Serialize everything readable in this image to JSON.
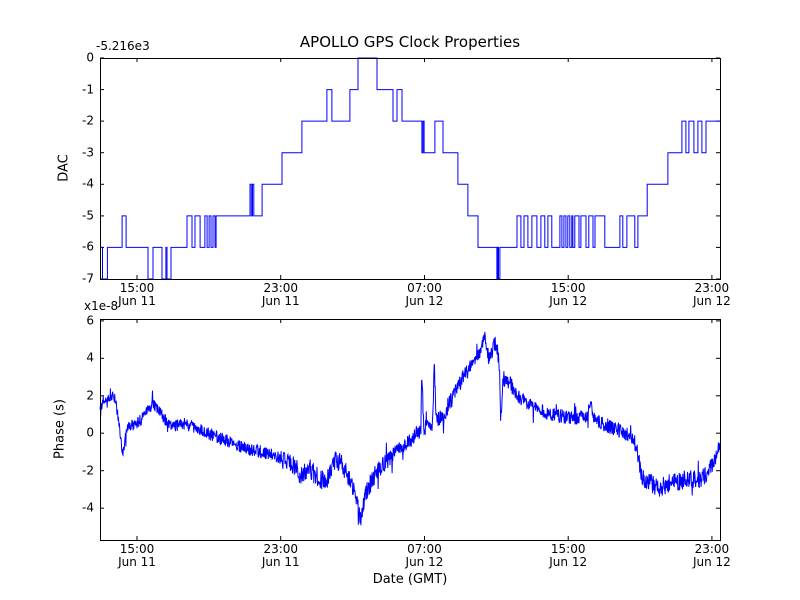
{
  "figure": {
    "title": "APOLLO GPS Clock Properties",
    "background_color": "#ffffff",
    "line_color": "#0000ff",
    "axis_color": "#000000"
  },
  "chart_data": [
    {
      "type": "line",
      "subplot": "top",
      "title": "APOLLO GPS Clock Properties",
      "series_name": "DAC",
      "ylabel": "DAC",
      "y_offset_label": "-5.216e3",
      "yticks": [
        0,
        -1,
        -2,
        -3,
        -4,
        -5,
        -6,
        -7
      ],
      "ylim": [
        -7,
        0
      ],
      "xlim_hours": [
        12.94,
        47.45
      ],
      "xticks_hours": [
        15,
        23,
        31,
        39,
        47
      ],
      "xtick_labels": [
        [
          "15:00",
          "Jun 11"
        ],
        [
          "23:00",
          "Jun 11"
        ],
        [
          "07:00",
          "Jun 12"
        ],
        [
          "15:00",
          "Jun 12"
        ],
        [
          "23:00",
          "Jun 12"
        ]
      ],
      "grid": false,
      "draw_style": "steps-post",
      "steps": [
        [
          12.94,
          -6
        ],
        [
          13.08,
          -7
        ],
        [
          13.35,
          -6
        ],
        [
          14.17,
          -5
        ],
        [
          14.39,
          -6
        ],
        [
          15.61,
          -7
        ],
        [
          15.89,
          -6
        ],
        [
          16.39,
          -7
        ],
        [
          16.61,
          -6
        ],
        [
          16.67,
          -7
        ],
        [
          16.89,
          -6
        ],
        [
          17.78,
          -5
        ],
        [
          18.06,
          -6
        ],
        [
          18.23,
          -5
        ],
        [
          18.51,
          -6
        ],
        [
          18.78,
          -5
        ],
        [
          18.9,
          -6
        ],
        [
          19.01,
          -5
        ],
        [
          19.12,
          -6
        ],
        [
          19.23,
          -5
        ],
        [
          19.34,
          -6
        ],
        [
          19.4,
          -5
        ],
        [
          21.29,
          -4
        ],
        [
          21.36,
          -5
        ],
        [
          21.43,
          -4
        ],
        [
          21.5,
          -5
        ],
        [
          21.96,
          -4
        ],
        [
          23.07,
          -3
        ],
        [
          24.18,
          -2
        ],
        [
          25.57,
          -1
        ],
        [
          25.85,
          -2
        ],
        [
          26.85,
          -1
        ],
        [
          27.3,
          0
        ],
        [
          28.36,
          -1
        ],
        [
          29.25,
          -2
        ],
        [
          29.47,
          -1
        ],
        [
          29.75,
          -2
        ],
        [
          30.86,
          -3
        ],
        [
          30.92,
          -2
        ],
        [
          30.98,
          -3
        ],
        [
          31.58,
          -2
        ],
        [
          32.03,
          -3
        ],
        [
          32.86,
          -4
        ],
        [
          33.42,
          -5
        ],
        [
          33.98,
          -6
        ],
        [
          35.03,
          -7
        ],
        [
          35.08,
          -6
        ],
        [
          35.12,
          -7
        ],
        [
          35.2,
          -6
        ],
        [
          36.15,
          -5
        ],
        [
          36.37,
          -6
        ],
        [
          36.54,
          -5
        ],
        [
          36.76,
          -6
        ],
        [
          36.98,
          -5
        ],
        [
          37.26,
          -6
        ],
        [
          37.48,
          -5
        ],
        [
          37.7,
          -6
        ],
        [
          37.87,
          -5
        ],
        [
          38.09,
          -6
        ],
        [
          38.54,
          -5
        ],
        [
          38.65,
          -6
        ],
        [
          38.76,
          -5
        ],
        [
          38.87,
          -6
        ],
        [
          38.98,
          -5
        ],
        [
          39.09,
          -6
        ],
        [
          39.2,
          -5
        ],
        [
          39.26,
          -6
        ],
        [
          39.37,
          -5
        ],
        [
          39.6,
          -6
        ],
        [
          39.71,
          -5
        ],
        [
          39.99,
          -6
        ],
        [
          40.15,
          -5
        ],
        [
          40.38,
          -6
        ],
        [
          40.49,
          -5
        ],
        [
          41.04,
          -6
        ],
        [
          41.88,
          -5
        ],
        [
          42.04,
          -6
        ],
        [
          42.27,
          -5
        ],
        [
          42.71,
          -6
        ],
        [
          42.88,
          -5
        ],
        [
          43.4,
          -4
        ],
        [
          44.55,
          -3
        ],
        [
          45.33,
          -2
        ],
        [
          45.55,
          -3
        ],
        [
          45.72,
          -2
        ],
        [
          46.0,
          -3
        ],
        [
          46.22,
          -2
        ],
        [
          46.44,
          -3
        ],
        [
          46.67,
          -2
        ]
      ]
    },
    {
      "type": "line",
      "subplot": "bottom",
      "series_name": "Phase",
      "ylabel": "Phase (s)",
      "y_multiplier_label": "x1e-8",
      "xlabel": "Date (GMT)",
      "unit_scale": "1e-8 s",
      "yticks": [
        6,
        4,
        2,
        0,
        -2,
        -4
      ],
      "ylim": [
        -5.7,
        6.1
      ],
      "xlim_hours": [
        12.94,
        47.45
      ],
      "xticks_hours": [
        15,
        23,
        31,
        39,
        47
      ],
      "xtick_labels": [
        [
          "15:00",
          "Jun 11"
        ],
        [
          "23:00",
          "Jun 11"
        ],
        [
          "07:00",
          "Jun 12"
        ],
        [
          "15:00",
          "Jun 12"
        ],
        [
          "23:00",
          "Jun 12"
        ]
      ],
      "grid": false,
      "anchors": [
        [
          12.94,
          1.4
        ],
        [
          13.2,
          1.8
        ],
        [
          13.7,
          2.1
        ],
        [
          13.95,
          0.9
        ],
        [
          14.2,
          -1.1
        ],
        [
          14.45,
          0.4
        ],
        [
          15.0,
          0.5
        ],
        [
          15.9,
          1.6
        ],
        [
          16.5,
          0.8
        ],
        [
          17.0,
          0.4
        ],
        [
          17.6,
          0.5
        ],
        [
          18.3,
          0.3
        ],
        [
          19.2,
          -0.1
        ],
        [
          20.0,
          -0.4
        ],
        [
          21.0,
          -0.8
        ],
        [
          22.0,
          -1.0
        ],
        [
          23.0,
          -1.3
        ],
        [
          23.6,
          -1.6
        ],
        [
          24.1,
          -2.2
        ],
        [
          24.6,
          -1.9
        ],
        [
          25.0,
          -2.3
        ],
        [
          25.5,
          -2.6
        ],
        [
          26.0,
          -1.5
        ],
        [
          26.4,
          -1.6
        ],
        [
          26.9,
          -2.6
        ],
        [
          27.3,
          -3.6
        ],
        [
          27.45,
          -4.5
        ],
        [
          27.7,
          -3.2
        ],
        [
          28.2,
          -2.3
        ],
        [
          28.8,
          -1.6
        ],
        [
          29.5,
          -0.9
        ],
        [
          30.2,
          -0.4
        ],
        [
          30.8,
          0.2
        ],
        [
          30.85,
          3.4
        ],
        [
          30.95,
          0.3
        ],
        [
          31.45,
          0.5
        ],
        [
          31.55,
          3.7
        ],
        [
          31.65,
          0.7
        ],
        [
          32.1,
          1.1
        ],
        [
          32.6,
          2.0
        ],
        [
          33.1,
          2.9
        ],
        [
          33.6,
          3.6
        ],
        [
          34.0,
          4.2
        ],
        [
          34.35,
          5.2
        ],
        [
          34.6,
          4.0
        ],
        [
          34.95,
          4.8
        ],
        [
          35.15,
          3.9
        ],
        [
          35.25,
          0.7
        ],
        [
          35.4,
          3.2
        ],
        [
          35.8,
          2.6
        ],
        [
          36.3,
          1.9
        ],
        [
          37.0,
          1.5
        ],
        [
          37.8,
          1.1
        ],
        [
          38.6,
          0.9
        ],
        [
          39.3,
          0.8
        ],
        [
          40.1,
          0.9
        ],
        [
          40.2,
          1.7
        ],
        [
          40.5,
          0.7
        ],
        [
          41.2,
          0.4
        ],
        [
          42.0,
          0.1
        ],
        [
          42.7,
          -0.4
        ],
        [
          43.1,
          -2.3
        ],
        [
          43.6,
          -2.7
        ],
        [
          44.1,
          -2.9
        ],
        [
          44.6,
          -2.7
        ],
        [
          45.1,
          -2.6
        ],
        [
          45.7,
          -2.4
        ],
        [
          46.3,
          -2.5
        ],
        [
          46.8,
          -2.1
        ],
        [
          47.2,
          -1.3
        ],
        [
          47.45,
          -0.6
        ]
      ],
      "noise_profile": [
        [
          12.94,
          0.3
        ],
        [
          23.0,
          0.35
        ],
        [
          24.0,
          0.55
        ],
        [
          28.5,
          0.5
        ],
        [
          29.5,
          0.35
        ],
        [
          30.5,
          0.4
        ],
        [
          32.0,
          0.45
        ],
        [
          34.0,
          0.4
        ],
        [
          35.5,
          0.45
        ],
        [
          36.5,
          0.35
        ],
        [
          42.5,
          0.4
        ],
        [
          43.2,
          0.55
        ],
        [
          47.0,
          0.45
        ],
        [
          47.45,
          0.35
        ]
      ],
      "noise_seed": 12,
      "sample_step": 0.02
    }
  ]
}
